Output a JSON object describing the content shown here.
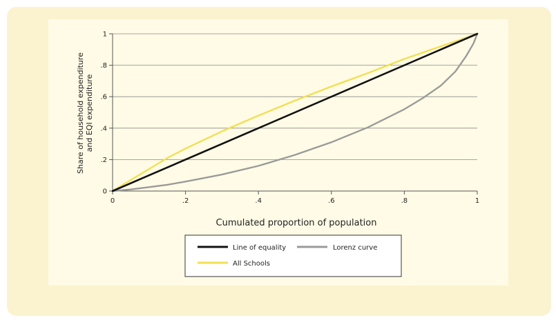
{
  "chart_data": {
    "type": "line",
    "title": "",
    "xlabel": "Cumulated proportion of population",
    "ylabel_lines": [
      "Share of household expenditure",
      "and EQI expenditure"
    ],
    "xlim": [
      0,
      1
    ],
    "ylim": [
      0,
      1
    ],
    "x_ticks": [
      {
        "v": 0,
        "label": "0"
      },
      {
        "v": 0.2,
        "label": ".2"
      },
      {
        "v": 0.4,
        "label": ".4"
      },
      {
        "v": 0.6,
        "label": ".6"
      },
      {
        "v": 0.8,
        "label": ".8"
      },
      {
        "v": 1,
        "label": "1"
      }
    ],
    "y_ticks": [
      {
        "v": 0,
        "label": "0"
      },
      {
        "v": 0.2,
        "label": ".2"
      },
      {
        "v": 0.4,
        "label": ".4"
      },
      {
        "v": 0.6,
        "label": ".6"
      },
      {
        "v": 0.8,
        "label": ".8"
      },
      {
        "v": 1,
        "label": "1"
      }
    ],
    "grid": "horizontal",
    "legend_placement": "bottom",
    "series": [
      {
        "name": "Line of equality",
        "color": "#111111",
        "x": [
          0,
          1
        ],
        "y": [
          0,
          1
        ]
      },
      {
        "name": "Lorenz curve",
        "color": "#9a9a9a",
        "x": [
          0,
          0.05,
          0.1,
          0.15,
          0.2,
          0.3,
          0.4,
          0.5,
          0.6,
          0.7,
          0.8,
          0.85,
          0.9,
          0.94,
          0.97,
          0.99,
          1.0
        ],
        "y": [
          0,
          0.01,
          0.025,
          0.04,
          0.06,
          0.105,
          0.16,
          0.23,
          0.31,
          0.405,
          0.52,
          0.59,
          0.67,
          0.76,
          0.86,
          0.94,
          1.0
        ]
      },
      {
        "name": "All Schools",
        "color": "#f2df52",
        "x": [
          0,
          0.05,
          0.1,
          0.15,
          0.2,
          0.3,
          0.4,
          0.5,
          0.6,
          0.7,
          0.8,
          0.9,
          1.0
        ],
        "y": [
          0,
          0.07,
          0.14,
          0.21,
          0.27,
          0.38,
          0.48,
          0.575,
          0.665,
          0.75,
          0.84,
          0.92,
          1.0
        ]
      }
    ]
  }
}
